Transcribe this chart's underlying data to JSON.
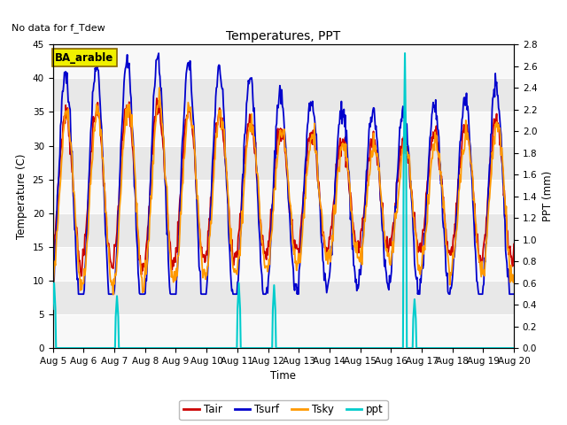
{
  "title": "Temperatures, PPT",
  "xlabel": "Time",
  "ylabel_left": "Temperature (C)",
  "ylabel_right": "PPT (mm)",
  "no_data_text": "No data for f_Tdew",
  "label_text": "BA_arable",
  "ylim_left": [
    0,
    45
  ],
  "ylim_right": [
    0.0,
    2.8
  ],
  "yticks_left": [
    0,
    5,
    10,
    15,
    20,
    25,
    30,
    35,
    40,
    45
  ],
  "yticks_right": [
    0.0,
    0.2,
    0.4,
    0.6,
    0.8,
    1.0,
    1.2,
    1.4,
    1.6,
    1.8,
    2.0,
    2.2,
    2.4,
    2.6,
    2.8
  ],
  "xtick_labels": [
    "Aug 5",
    "Aug 6",
    "Aug 7",
    "Aug 8",
    "Aug 9",
    "Aug 10",
    "Aug 11",
    "Aug 12",
    "Aug 13",
    "Aug 14",
    "Aug 15",
    "Aug 16",
    "Aug 17",
    "Aug 18",
    "Aug 19",
    "Aug 20"
  ],
  "color_tair": "#cc0000",
  "color_tsurf": "#0000cc",
  "color_tsky": "#ff9900",
  "color_ppt": "#00cccc",
  "background_color": "#ffffff",
  "plot_bg_color": "#f0f0f0",
  "band_color_odd": "#e8e8e8",
  "band_color_even": "#f8f8f8",
  "legend_labels": [
    "Tair",
    "Tsurf",
    "Tsky",
    "ppt"
  ],
  "figsize": [
    6.4,
    4.8
  ],
  "dpi": 100,
  "label_bbox_face": "#f0f000",
  "label_bbox_edge": "#886600",
  "label_text_color": "#000000"
}
